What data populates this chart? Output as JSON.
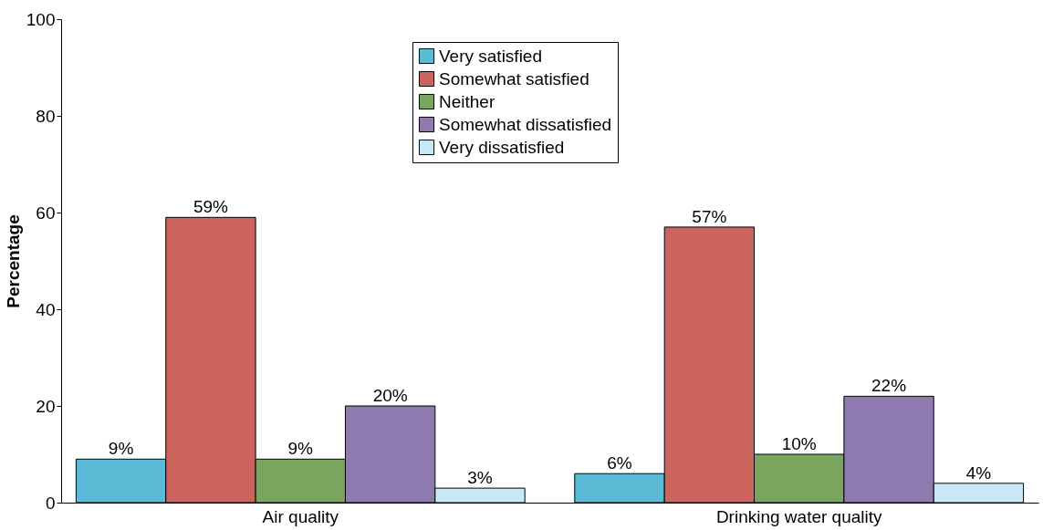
{
  "chart_data": {
    "type": "bar",
    "ylabel": "Percentage",
    "categories": [
      "Air quality",
      "Drinking water quality"
    ],
    "series": [
      {
        "name": "Very satisfied",
        "color": "#5bbad5",
        "values": [
          9,
          6
        ],
        "value_labels": [
          "9%",
          "6%"
        ]
      },
      {
        "name": "Somewhat satisfied",
        "color": "#cc645e",
        "values": [
          59,
          57
        ],
        "value_labels": [
          "59%",
          "57%"
        ]
      },
      {
        "name": "Neither",
        "color": "#79a55f",
        "values": [
          9,
          10
        ],
        "value_labels": [
          "9%",
          "10%"
        ]
      },
      {
        "name": "Somewhat dissatisfied",
        "color": "#8f7ab0",
        "values": [
          20,
          22
        ],
        "value_labels": [
          "20%",
          "22%"
        ]
      },
      {
        "name": "Very dissatisfied",
        "color": "#c8e8f7",
        "values": [
          3,
          4
        ],
        "value_labels": [
          "3%",
          "4%"
        ]
      }
    ],
    "ylim": [
      0,
      100
    ],
    "yticks": [
      0,
      20,
      40,
      60,
      80,
      100
    ],
    "grid": false,
    "legend": "top"
  }
}
